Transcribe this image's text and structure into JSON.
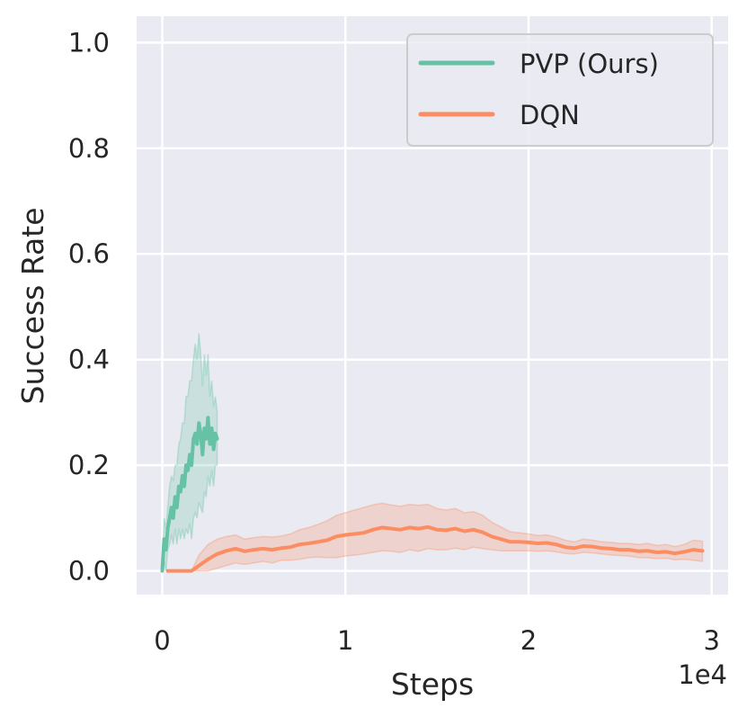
{
  "chart_data": {
    "type": "line",
    "xlabel": "Steps",
    "ylabel": "Success Rate",
    "x_offset_text": "1e4",
    "xlim": [
      -1400,
      30900
    ],
    "ylim": [
      -0.045,
      1.05
    ],
    "xticks": [
      0,
      10000,
      20000,
      30000
    ],
    "xtick_labels": [
      "0",
      "1",
      "2",
      "3"
    ],
    "yticks": [
      0.0,
      0.2,
      0.4,
      0.6,
      0.8,
      1.0
    ],
    "ytick_labels": [
      "0.0",
      "0.2",
      "0.4",
      "0.6",
      "0.8",
      "1.0"
    ],
    "grid": true,
    "legend_position": "top-right",
    "series": [
      {
        "name": "PVP (Ours)",
        "color": "#66c2a5",
        "x": [
          0,
          100,
          200,
          300,
          400,
          500,
          600,
          700,
          800,
          900,
          1000,
          1100,
          1200,
          1300,
          1400,
          1500,
          1600,
          1700,
          1800,
          1900,
          2000,
          2100,
          2200,
          2300,
          2400,
          2500,
          2600,
          2700,
          2800,
          2900,
          3000
        ],
        "y": [
          0.0,
          0.06,
          0.04,
          0.08,
          0.1,
          0.12,
          0.1,
          0.14,
          0.12,
          0.16,
          0.15,
          0.18,
          0.16,
          0.2,
          0.19,
          0.22,
          0.2,
          0.25,
          0.26,
          0.24,
          0.28,
          0.26,
          0.22,
          0.27,
          0.25,
          0.29,
          0.24,
          0.27,
          0.23,
          0.26,
          0.25
        ],
        "lower": [
          0.0,
          0.02,
          0.0,
          0.04,
          0.05,
          0.07,
          0.05,
          0.08,
          0.05,
          0.08,
          0.06,
          0.08,
          0.06,
          0.08,
          0.07,
          0.09,
          0.06,
          0.1,
          0.11,
          0.1,
          0.13,
          0.12,
          0.11,
          0.15,
          0.14,
          0.18,
          0.16,
          0.19,
          0.16,
          0.2,
          0.2
        ],
        "upper": [
          0.0,
          0.1,
          0.08,
          0.12,
          0.16,
          0.18,
          0.17,
          0.2,
          0.2,
          0.24,
          0.25,
          0.28,
          0.28,
          0.33,
          0.33,
          0.36,
          0.36,
          0.4,
          0.43,
          0.4,
          0.45,
          0.41,
          0.35,
          0.41,
          0.37,
          0.41,
          0.33,
          0.36,
          0.31,
          0.33,
          0.3
        ]
      },
      {
        "name": "DQN",
        "color": "#fc8d62",
        "x": [
          300,
          1000,
          1500,
          1600,
          2000,
          2500,
          3000,
          3500,
          4000,
          4500,
          5000,
          5500,
          6000,
          6500,
          7000,
          7500,
          8000,
          8500,
          9000,
          9500,
          10000,
          10500,
          11000,
          11500,
          12000,
          12500,
          13000,
          13500,
          14000,
          14500,
          15000,
          15500,
          16000,
          16500,
          17000,
          17500,
          18000,
          18500,
          19000,
          19500,
          20000,
          20500,
          21000,
          21500,
          22000,
          22500,
          23000,
          23500,
          24000,
          24500,
          25000,
          25500,
          26000,
          26500,
          27000,
          27500,
          28000,
          28500,
          29000,
          29500
        ],
        "y": [
          0.0,
          0.0,
          0.0,
          0.0,
          0.01,
          0.022,
          0.032,
          0.038,
          0.042,
          0.037,
          0.04,
          0.042,
          0.04,
          0.043,
          0.045,
          0.05,
          0.052,
          0.055,
          0.058,
          0.065,
          0.068,
          0.07,
          0.072,
          0.078,
          0.082,
          0.08,
          0.078,
          0.082,
          0.08,
          0.083,
          0.078,
          0.077,
          0.08,
          0.075,
          0.078,
          0.073,
          0.065,
          0.06,
          0.055,
          0.055,
          0.054,
          0.052,
          0.053,
          0.05,
          0.045,
          0.043,
          0.047,
          0.046,
          0.043,
          0.042,
          0.04,
          0.04,
          0.037,
          0.038,
          0.035,
          0.036,
          0.033,
          0.036,
          0.04,
          0.038
        ],
        "lower": [
          0.0,
          0.0,
          0.0,
          0.0,
          0.0,
          0.0,
          0.005,
          0.01,
          0.015,
          0.012,
          0.015,
          0.018,
          0.015,
          0.02,
          0.02,
          0.022,
          0.025,
          0.026,
          0.025,
          0.025,
          0.028,
          0.03,
          0.032,
          0.035,
          0.038,
          0.037,
          0.035,
          0.04,
          0.037,
          0.042,
          0.04,
          0.04,
          0.043,
          0.04,
          0.045,
          0.042,
          0.04,
          0.038,
          0.038,
          0.038,
          0.038,
          0.037,
          0.038,
          0.036,
          0.033,
          0.032,
          0.035,
          0.034,
          0.032,
          0.03,
          0.029,
          0.028,
          0.025,
          0.025,
          0.023,
          0.024,
          0.021,
          0.022,
          0.02,
          0.018
        ],
        "upper": [
          0.0,
          0.0,
          0.0,
          0.0,
          0.03,
          0.05,
          0.06,
          0.065,
          0.068,
          0.06,
          0.063,
          0.065,
          0.064,
          0.066,
          0.07,
          0.078,
          0.082,
          0.088,
          0.095,
          0.105,
          0.11,
          0.115,
          0.12,
          0.125,
          0.128,
          0.125,
          0.122,
          0.126,
          0.124,
          0.126,
          0.118,
          0.115,
          0.118,
          0.11,
          0.112,
          0.105,
          0.092,
          0.083,
          0.074,
          0.072,
          0.07,
          0.067,
          0.068,
          0.064,
          0.058,
          0.055,
          0.06,
          0.058,
          0.055,
          0.054,
          0.052,
          0.052,
          0.05,
          0.052,
          0.048,
          0.05,
          0.046,
          0.05,
          0.058,
          0.056
        ]
      }
    ]
  }
}
